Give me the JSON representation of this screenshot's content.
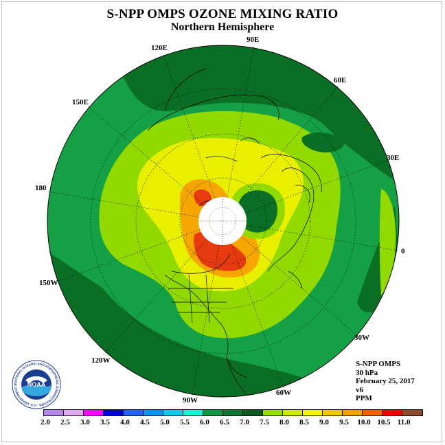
{
  "header": {
    "title": "S-NPP OMPS OZONE MIXING RATIO",
    "subtitle": "Northern Hemisphere"
  },
  "map": {
    "projection": "polar stereographic, north pole centered",
    "longitude_labels": [
      "90E",
      "60E",
      "30E",
      "0",
      "30W",
      "60W",
      "90W",
      "120W",
      "150W",
      "180",
      "150E",
      "120E"
    ],
    "fill_colors": {
      "outer_ring": "#16a045",
      "low": "#0a6e24",
      "mid": "#92d900",
      "high": "#e8f000",
      "peak": "#f5a600",
      "max": "#e63a10",
      "polar_cap": "#ffffff"
    }
  },
  "info": {
    "instrument": "S-NPP OMPS",
    "level": "30 hPa",
    "date": "February 25, 2017",
    "version": "v6",
    "units": "PPM"
  },
  "colorbar": {
    "ticks": [
      "2.0",
      "2.5",
      "3.0",
      "3.5",
      "4.0",
      "4.5",
      "5.0",
      "5.5",
      "6.0",
      "6.5",
      "7.0",
      "7.5",
      "8.0",
      "8.5",
      "9.0",
      "9.5",
      "10.0",
      "10.5",
      "11.0"
    ],
    "colors": [
      "#b784e8",
      "#e0a8f0",
      "#ff00ff",
      "#0000d0",
      "#1e64f0",
      "#0a96f0",
      "#1ec3f0",
      "#23f0d8",
      "#109846",
      "#0a7830",
      "#075a1e",
      "#98dc00",
      "#ccec00",
      "#f5f500",
      "#f0c800",
      "#f0a000",
      "#f06400",
      "#f00000",
      "#8c4a28"
    ]
  },
  "logo": {
    "text": "NOAA",
    "ring_text": "NATIONAL OCEANIC AND ATMOSPHERIC ADMINISTRATION · U.S. DEPARTMENT OF COMMERCE"
  }
}
